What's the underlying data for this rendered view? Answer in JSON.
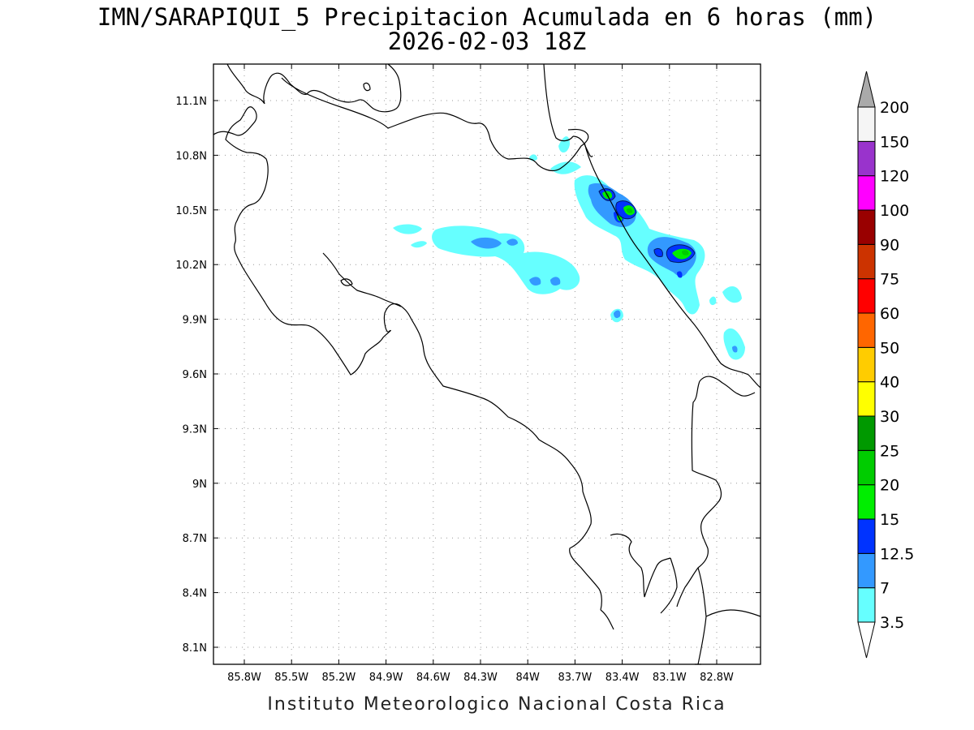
{
  "header": {
    "title_line1": "IMN/SARAPIQUI_5 Precipitacion Acumulada en 6 horas (mm)",
    "title_line2": "2026-02-03 18Z"
  },
  "footer": {
    "credit": "Instituto Meteorologico Nacional Costa Rica"
  },
  "map": {
    "lon_ticks": [
      "85.8W",
      "85.5W",
      "85.2W",
      "84.9W",
      "84.6W",
      "84.3W",
      "84W",
      "83.7W",
      "83.4W",
      "83.1W",
      "82.8W"
    ],
    "lat_ticks": [
      "11.1N",
      "10.8N",
      "10.5N",
      "10.2N",
      "9.9N",
      "9.6N",
      "9.3N",
      "9N",
      "8.7N",
      "8.4N",
      "8.1N"
    ],
    "grid": "dotted"
  },
  "colorbar": {
    "labels": [
      "3.5",
      "7",
      "12.5",
      "15",
      "20",
      "25",
      "30",
      "40",
      "50",
      "60",
      "75",
      "90",
      "100",
      "120",
      "150",
      "200"
    ],
    "colors": [
      "#66ffff",
      "#3399ff",
      "#0033ff",
      "#00ee00",
      "#00cc00",
      "#009900",
      "#ffff00",
      "#ffcc00",
      "#ff6600",
      "#ff0000",
      "#cc3300",
      "#990000",
      "#ff00ff",
      "#9933cc",
      "#f5f5f5",
      "#aaaaaa"
    ],
    "below_color": "#ffffff",
    "above_color": "#aaaaaa"
  }
}
